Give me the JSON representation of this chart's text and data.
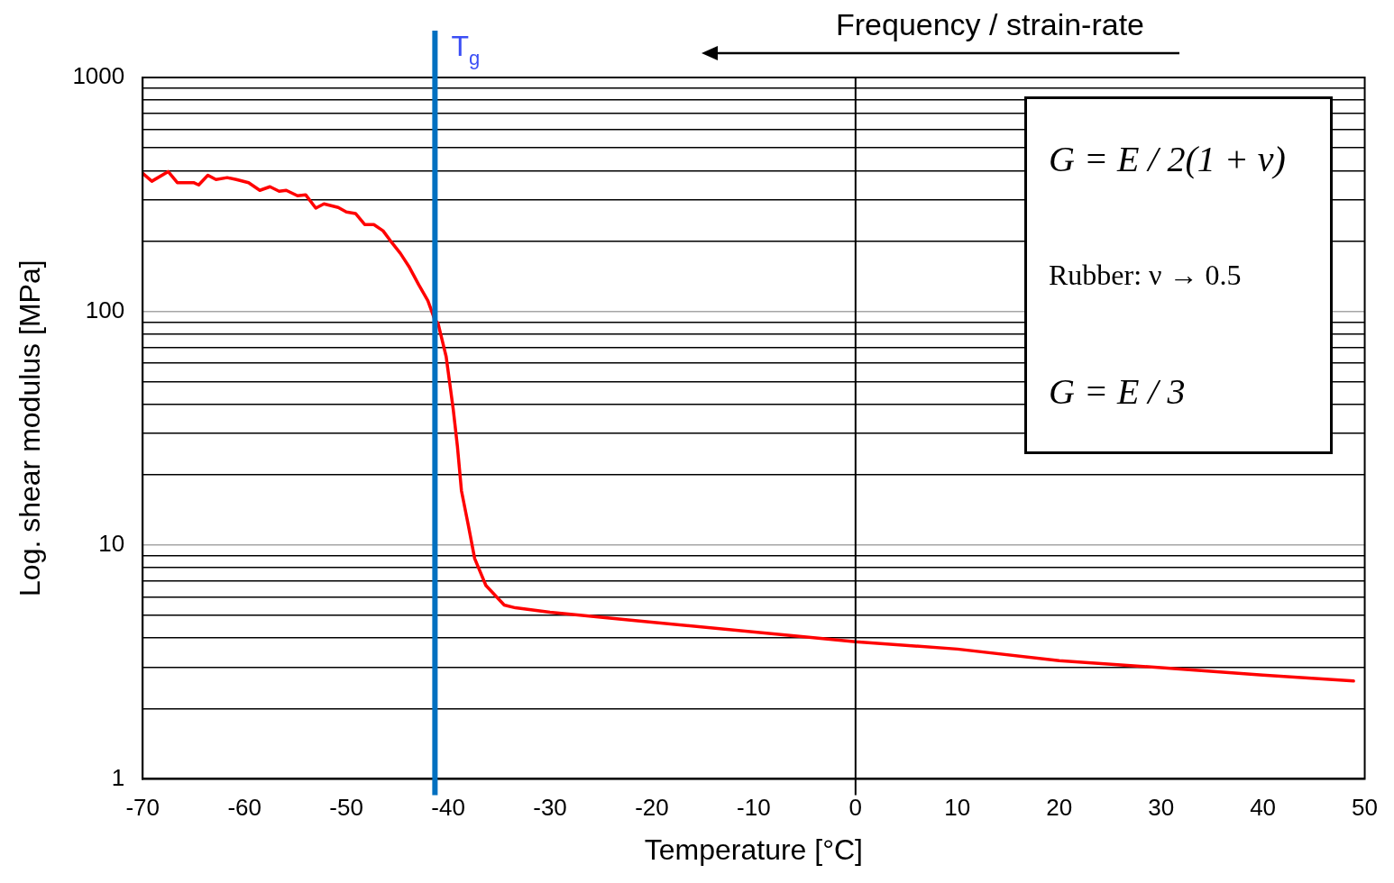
{
  "chart_data": {
    "type": "line",
    "xlabel": "Temperature [°C]",
    "ylabel": "Log. shear modulus [MPa]",
    "annotations": [
      "Frequency / strain-rate",
      "G = E / 2(1 + ν)",
      "Rubber: ν → 0.5",
      "G = E / 3"
    ],
    "series": [
      {
        "color": "#ff0000",
        "x": [
          -70,
          -69.1,
          -67.5,
          -66.6,
          -65,
          -64.5,
          -63.6,
          -62.8,
          -61.7,
          -60.8,
          -59.6,
          -58.5,
          -57.5,
          -56.6,
          -55.9,
          -54.8,
          -54.0,
          -53.0,
          -52.2,
          -50.8,
          -50.0,
          -49.1,
          -48.2,
          -47.3,
          -46.4,
          -45.7,
          -44.7,
          -43.8,
          -42.9,
          -42.0,
          -41.3,
          -41.0,
          -40.2,
          -39.5,
          -39.1,
          -38.7,
          -38.0,
          -37.4,
          -36.3,
          -34.5,
          -33.4,
          -30,
          -22.1,
          0,
          10,
          20,
          30,
          40,
          48.9
        ],
        "values": [
          389,
          360,
          396,
          355,
          355,
          347,
          382,
          366,
          373,
          366,
          355,
          329,
          341,
          326,
          329,
          312,
          315,
          276,
          288,
          278,
          266,
          262,
          235,
          235,
          221,
          201,
          177,
          154,
          130,
          111,
          91.6,
          89,
          64,
          37.9,
          26.6,
          17.1,
          12.0,
          8.76,
          6.72,
          5.54,
          5.39,
          5.16,
          4.77,
          3.86,
          3.59,
          3.2,
          2.99,
          2.78,
          2.62
        ]
      }
    ],
    "xlim": [
      -70,
      50
    ],
    "xticks": [
      -70,
      -60,
      -50,
      -40,
      -30,
      -20,
      -10,
      0,
      10,
      20,
      30,
      40,
      50
    ],
    "ylim": [
      1,
      1000
    ],
    "yticks": [
      1,
      {
        "value": 2,
        "label": null
      },
      {
        "value": 3,
        "label": null
      },
      {
        "value": 4,
        "label": null
      },
      {
        "value": 5,
        "label": null
      },
      {
        "value": 6,
        "label": null
      },
      {
        "value": 7,
        "label": null
      },
      {
        "value": 8,
        "label": null
      },
      {
        "value": 9,
        "label": null
      },
      10,
      {
        "value": 20,
        "label": null
      },
      {
        "value": 30,
        "label": null
      },
      {
        "value": 40,
        "label": null
      },
      {
        "value": 50,
        "label": null
      },
      {
        "value": 60,
        "label": null
      },
      {
        "value": 70,
        "label": null
      },
      {
        "value": 80,
        "label": null
      },
      {
        "value": 90,
        "label": null
      },
      100,
      {
        "value": 200,
        "label": null
      },
      {
        "value": 300,
        "label": null
      },
      {
        "value": 400,
        "label": null
      },
      {
        "value": 500,
        "label": null
      },
      {
        "value": 600,
        "label": null
      },
      {
        "value": 700,
        "label": null
      },
      {
        "value": 800,
        "label": null
      },
      {
        "value": 900,
        "label": null
      },
      1000
    ],
    "log": "y",
    "grid": "y",
    "legend": false,
    "marker": "none",
    "line_style": "solid",
    "ref_lines": [
      {
        "axis": "x",
        "value": -41.3,
        "label": "T$_{g}$",
        "color": "#0070c0"
      },
      {
        "axis": "x",
        "value": 0,
        "label": null,
        "color": "#000000"
      }
    ]
  }
}
